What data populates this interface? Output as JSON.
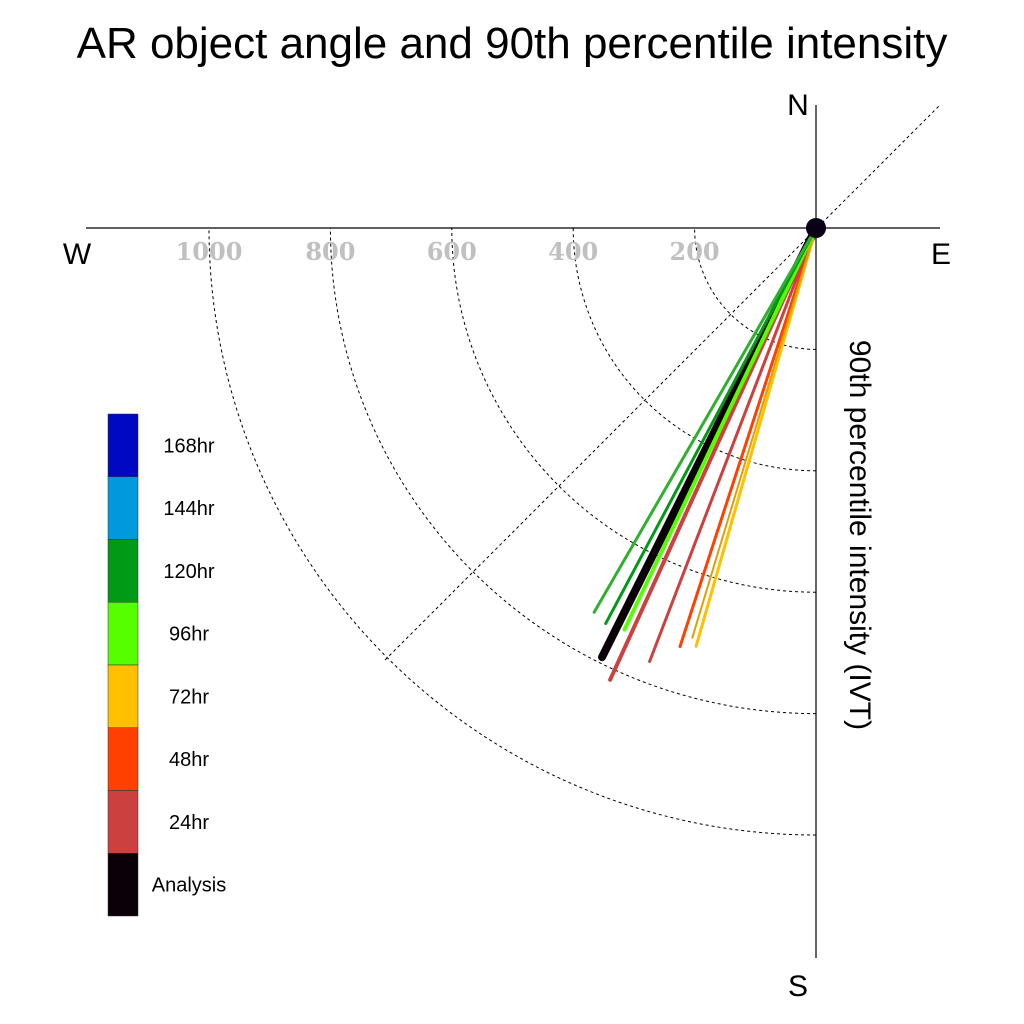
{
  "chart_data": {
    "type": "polar-vector",
    "title": "AR object angle and 90th percentile intensity",
    "ylabel": "90th percentile intensity (IVT)",
    "compass": {
      "n": "N",
      "s": "S",
      "e": "E",
      "w": "W"
    },
    "rings": [
      200,
      400,
      600,
      800,
      1000
    ],
    "tick_labels": [
      "1000",
      "800",
      "600",
      "400",
      "200"
    ],
    "max_intensity": 1000,
    "series": [
      {
        "name": "Analysis",
        "color": "#0a0008",
        "angle_deg": 206.5,
        "intensity": 790,
        "width": 8
      },
      {
        "name": "24hr",
        "color": "#cc4040",
        "angle_deg": 204.5,
        "intensity": 818,
        "width": 4
      },
      {
        "name": "48hr",
        "color": "#ff4000",
        "angle_deg": 198.0,
        "intensity": 725,
        "width": 3
      },
      {
        "name": "48hr",
        "color": "#cc4040",
        "angle_deg": 201.0,
        "intensity": 765,
        "width": 3
      },
      {
        "name": "72hr",
        "color": "#ffc000",
        "angle_deg": 196.0,
        "intensity": 717,
        "width": 3
      },
      {
        "name": "72hr",
        "color": "#e0a000",
        "angle_deg": 196.8,
        "intensity": 705,
        "width": 2
      },
      {
        "name": "96hr",
        "color": "#55ff00",
        "angle_deg": 205.5,
        "intensity": 733,
        "width": 4
      },
      {
        "name": "120hr",
        "color": "#009a17",
        "angle_deg": 208.0,
        "intensity": 738,
        "width": 3
      },
      {
        "name": "120hr",
        "color": "#30b030",
        "angle_deg": 210.0,
        "intensity": 731,
        "width": 3
      }
    ],
    "legend": [
      {
        "label": "168hr",
        "color": "#0009c1"
      },
      {
        "label": "144hr",
        "color": "#0099dd"
      },
      {
        "label": "120hr",
        "color": "#009a17"
      },
      {
        "label": "96hr",
        "color": "#55ff00"
      },
      {
        "label": "72hr",
        "color": "#ffc000"
      },
      {
        "label": "48hr",
        "color": "#ff4000"
      },
      {
        "label": "24hr",
        "color": "#cc4040"
      },
      {
        "label": "Analysis",
        "color": "#0a0008"
      }
    ],
    "origin_marker_color": "#0a0018"
  }
}
